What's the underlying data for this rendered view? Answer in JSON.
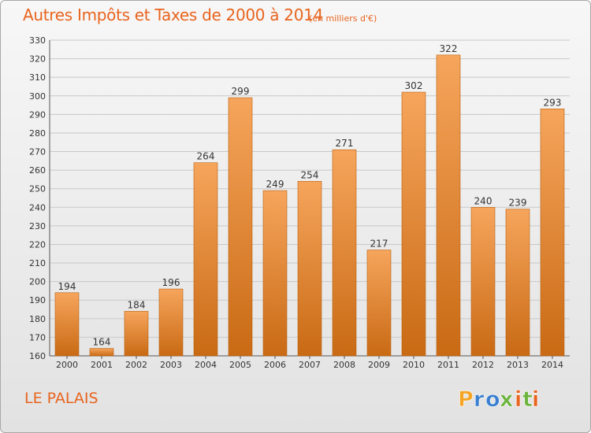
{
  "title": "Autres Impôts et Taxes de 2000 à 2014",
  "subtitle": "(en milliers d'€)",
  "commune": "LE PALAIS",
  "logo": {
    "letters": [
      "P",
      "r",
      "o",
      "x",
      "i",
      "t",
      "i"
    ],
    "colors": [
      "#f4a526",
      "#3a7fd0",
      "#3a7fd0",
      "#6cb43f",
      "#e8641e",
      "#6cb43f",
      "#e8641e"
    ]
  },
  "colors": {
    "accent": "#e8641e",
    "bar_top": "#f6a55c",
    "bar_bottom": "#c96a14",
    "grid": "#c8c8c8",
    "axis_text": "#333333"
  },
  "chart_data": {
    "type": "bar",
    "categories": [
      "2000",
      "2001",
      "2002",
      "2003",
      "2004",
      "2005",
      "2006",
      "2007",
      "2008",
      "2009",
      "2010",
      "2011",
      "2012",
      "2013",
      "2014"
    ],
    "values": [
      194,
      164,
      184,
      196,
      264,
      299,
      249,
      254,
      271,
      217,
      302,
      322,
      240,
      239,
      293
    ],
    "data_labels": [
      "194",
      "164",
      "184",
      "196",
      "264",
      "299",
      "249",
      "254",
      "271",
      "217",
      "302",
      "322",
      "240",
      "239",
      "293"
    ],
    "ylim": [
      160,
      330
    ],
    "yticks": [
      160,
      170,
      180,
      190,
      200,
      210,
      220,
      230,
      240,
      250,
      260,
      270,
      280,
      290,
      300,
      310,
      320,
      330
    ],
    "grid": true,
    "legend": "none"
  }
}
